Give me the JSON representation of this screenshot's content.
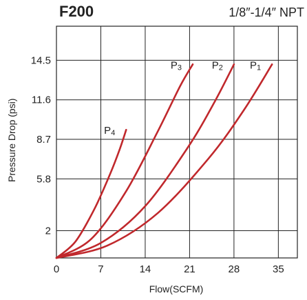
{
  "chart_data": {
    "type": "line",
    "title": "F200",
    "subtitle": "1/8″-1/4″ NPT",
    "xlabel": "Flow(SCFM)",
    "ylabel": "Pressure Drop (psi)",
    "xlim": [
      0,
      38
    ],
    "ylim": [
      0,
      17
    ],
    "x_ticks": [
      "0",
      "7",
      "14",
      "21",
      "28",
      "35"
    ],
    "y_ticks": [
      "2",
      "5.8",
      "8.7",
      "11.6",
      "14.5"
    ],
    "grid": true,
    "series_color": "#c0282c",
    "series": [
      {
        "name": "P1",
        "label_main": "P",
        "label_sub": "1",
        "x": [
          0,
          8,
          16,
          24,
          29.5,
          34
        ],
        "y": [
          0,
          0.9,
          3.3,
          7.3,
          10.8,
          14.2
        ]
      },
      {
        "name": "P2",
        "label_main": "P",
        "label_sub": "2",
        "x": [
          0,
          7,
          14,
          21,
          25,
          28
        ],
        "y": [
          0,
          1.1,
          3.8,
          8.3,
          11.5,
          14.2
        ]
      },
      {
        "name": "P3",
        "label_main": "P",
        "label_sub": "3",
        "x": [
          0,
          5.5,
          11,
          16,
          19.5,
          21.5
        ],
        "y": [
          0,
          1.4,
          4.9,
          9.3,
          12.6,
          14.2
        ]
      },
      {
        "name": "P4",
        "label_main": "P",
        "label_sub": "4",
        "x": [
          0,
          3,
          6,
          8.5,
          10,
          11
        ],
        "y": [
          0,
          1.2,
          3.6,
          6.2,
          8.0,
          9.4
        ]
      }
    ]
  }
}
